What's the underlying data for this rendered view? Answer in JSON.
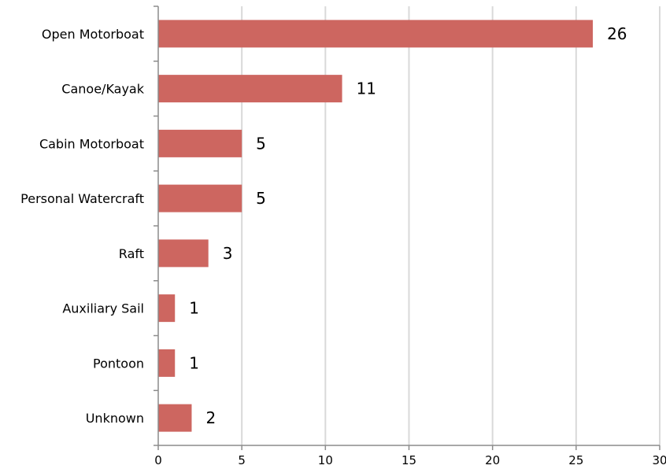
{
  "chart_data": {
    "type": "bar",
    "orientation": "horizontal",
    "categories": [
      "Open Motorboat",
      "Canoe/Kayak",
      "Cabin Motorboat",
      "Personal Watercraft",
      "Raft",
      "Auxiliary Sail",
      "Pontoon",
      "Unknown"
    ],
    "values": [
      26,
      11,
      5,
      5,
      3,
      1,
      1,
      2
    ],
    "xlim": [
      0,
      30
    ],
    "x_ticks": [
      0,
      5,
      10,
      15,
      20,
      25,
      30
    ],
    "grid": "vertical",
    "legend": "none",
    "bar_color": "#cd6660",
    "data_labels": true
  }
}
